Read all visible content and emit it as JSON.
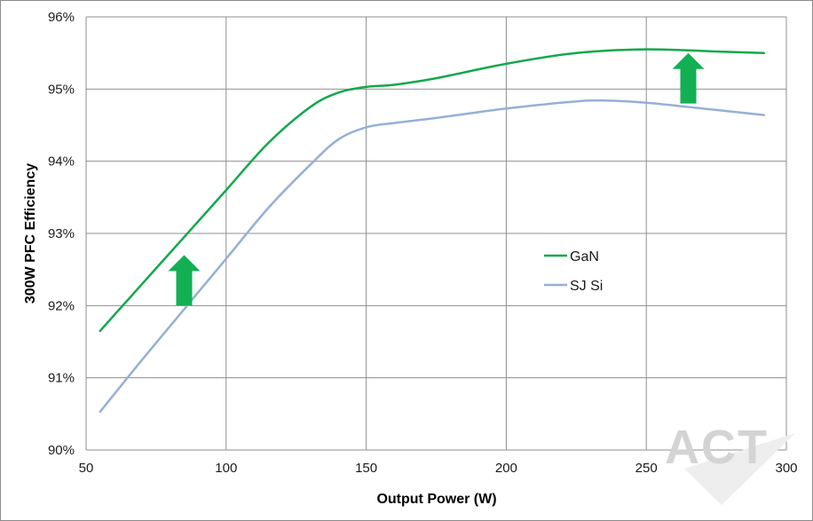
{
  "chart_data": {
    "type": "line",
    "title": "",
    "xlabel": "Output Power (W)",
    "ylabel": "300W PFC Efficiency",
    "xlim": [
      50,
      300
    ],
    "ylim": [
      90,
      96
    ],
    "x_ticks": [
      50,
      100,
      150,
      200,
      250,
      300
    ],
    "x_tick_labels": [
      "50",
      "100",
      "150",
      "200",
      "250",
      "300"
    ],
    "y_ticks": [
      90,
      91,
      92,
      93,
      94,
      95,
      96
    ],
    "y_tick_labels": [
      "90%",
      "91%",
      "92%",
      "93%",
      "94%",
      "95%",
      "96%"
    ],
    "grid": true,
    "legend_position": "center-right",
    "series": [
      {
        "name": "GaN",
        "color": "#12a84b",
        "x": [
          55,
          70,
          85,
          100,
          115,
          130,
          140,
          150,
          160,
          175,
          200,
          225,
          250,
          275,
          292
        ],
        "y": [
          91.65,
          92.3,
          92.95,
          93.6,
          94.25,
          94.75,
          94.95,
          95.03,
          95.06,
          95.15,
          95.35,
          95.5,
          95.55,
          95.52,
          95.5
        ]
      },
      {
        "name": "SJ Si",
        "color": "#94b0d6",
        "x": [
          55,
          70,
          85,
          100,
          115,
          130,
          140,
          150,
          160,
          175,
          200,
          225,
          235,
          250,
          275,
          292
        ],
        "y": [
          90.53,
          91.25,
          91.95,
          92.65,
          93.35,
          93.95,
          94.3,
          94.47,
          94.53,
          94.6,
          94.73,
          94.83,
          94.84,
          94.81,
          94.71,
          94.64
        ]
      }
    ],
    "annotations": [
      {
        "type": "arrow-up",
        "color": "#12b053",
        "x": 85,
        "y_from": 92.0,
        "y_to": 92.7
      },
      {
        "type": "arrow-up",
        "color": "#12b053",
        "x": 265,
        "y_from": 94.8,
        "y_to": 95.5
      }
    ]
  },
  "watermark": "ACT"
}
